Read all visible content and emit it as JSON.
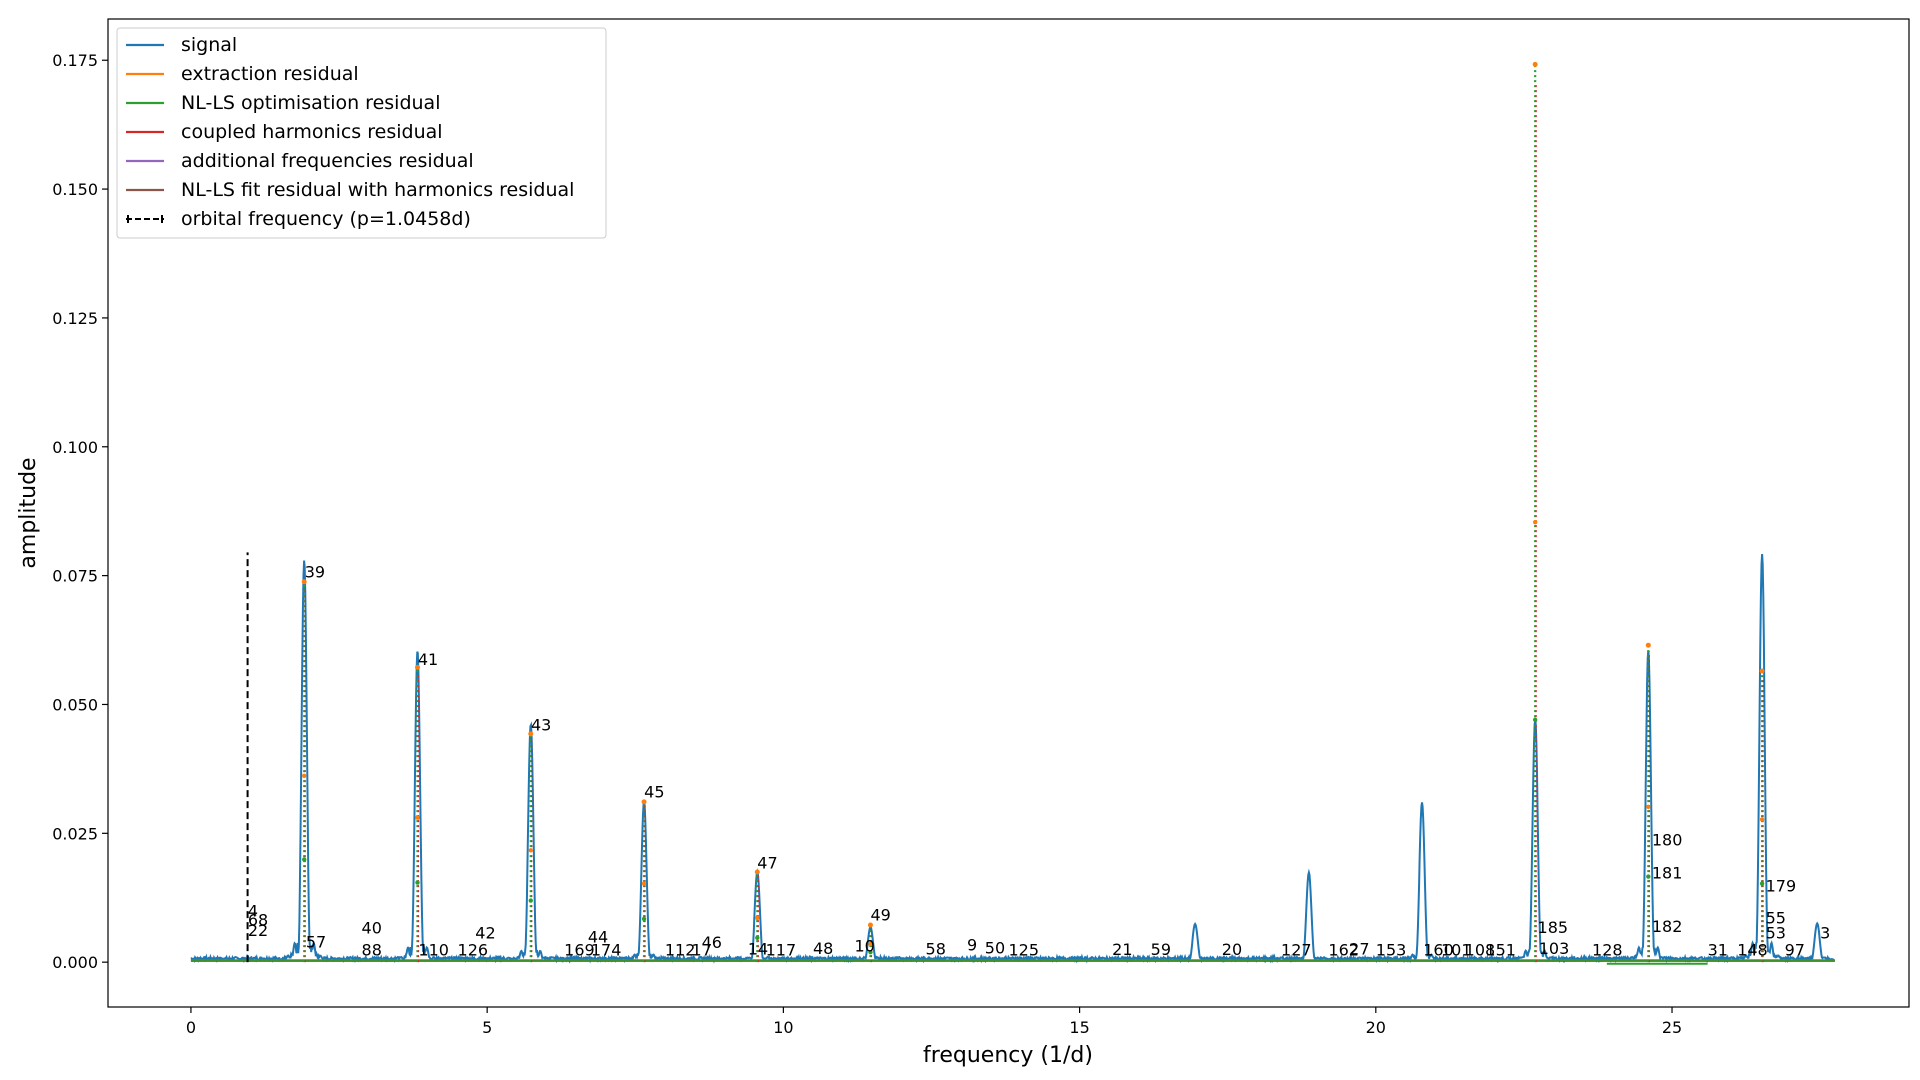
{
  "chart_data": {
    "type": "line",
    "title": "",
    "xlabel": "frequency (1/d)",
    "ylabel": "amplitude",
    "xlim": [
      -1.4,
      29.0
    ],
    "ylim": [
      -0.0087,
      0.183
    ],
    "xticks": [
      0,
      5,
      10,
      15,
      20,
      25
    ],
    "yticks": [
      0.0,
      0.025,
      0.05,
      0.075,
      0.1,
      0.125,
      0.15,
      0.175
    ],
    "ytick_labels": [
      "0.000",
      "0.025",
      "0.050",
      "0.075",
      "0.100",
      "0.125",
      "0.150",
      "0.175"
    ],
    "xtick_labels": [
      "0",
      "5",
      "10",
      "15",
      "20",
      "25"
    ],
    "grid": false,
    "legend_position": "top-left",
    "colors": {
      "signal": "#1f77b4",
      "extraction": "#ff7f0e",
      "nlls": "#2ca02c",
      "coupled": "#d62728",
      "additional": "#9467bd",
      "nlls_harm": "#8c564b",
      "orbital": "#000000"
    },
    "series": [
      {
        "name": "signal",
        "style": "solid",
        "peaks": [
          {
            "x": 1.912,
            "y": 0.078
          },
          {
            "x": 3.824,
            "y": 0.0605
          },
          {
            "x": 5.736,
            "y": 0.0462
          },
          {
            "x": 7.648,
            "y": 0.0313
          },
          {
            "x": 9.56,
            "y": 0.0175
          },
          {
            "x": 11.47,
            "y": 0.0068
          },
          {
            "x": 16.95,
            "y": 0.0074
          },
          {
            "x": 18.87,
            "y": 0.0174
          },
          {
            "x": 20.78,
            "y": 0.031
          },
          {
            "x": 22.69,
            "y": 0.0472
          },
          {
            "x": 24.6,
            "y": 0.0605
          },
          {
            "x": 26.52,
            "y": 0.0792
          },
          {
            "x": 27.45,
            "y": 0.0075
          }
        ]
      },
      {
        "name": "extraction residual",
        "style": "dotted"
      },
      {
        "name": "NL-LS optimisation residual",
        "style": "dotted"
      },
      {
        "name": "coupled harmonics residual",
        "style": "dotted"
      },
      {
        "name": "additional frequencies residual",
        "style": "dotted"
      },
      {
        "name": "NL-LS fit residual with harmonics residual",
        "style": "dotted"
      },
      {
        "name": "orbital frequency (p=1.0458d)",
        "style": "dashed",
        "x": 0.9562,
        "ymax": 0.0795
      }
    ],
    "dotted_spikes": [
      {
        "x": 1.912,
        "y": 0.0738
      },
      {
        "x": 3.824,
        "y": 0.0572
      },
      {
        "x": 5.736,
        "y": 0.0443
      },
      {
        "x": 7.648,
        "y": 0.0311
      },
      {
        "x": 9.56,
        "y": 0.0175
      },
      {
        "x": 11.47,
        "y": 0.0072
      },
      {
        "x": 22.69,
        "y": 0.1742
      },
      {
        "x": 24.6,
        "y": 0.0615
      },
      {
        "x": 26.52,
        "y": 0.0565
      }
    ],
    "annotations": [
      {
        "text": "39",
        "x": 1.92,
        "y": 0.0742
      },
      {
        "text": "41",
        "x": 3.83,
        "y": 0.0573
      },
      {
        "text": "43",
        "x": 5.74,
        "y": 0.0446
      },
      {
        "text": "45",
        "x": 7.65,
        "y": 0.0316
      },
      {
        "text": "47",
        "x": 9.56,
        "y": 0.0178
      },
      {
        "text": "49",
        "x": 11.47,
        "y": 0.0077
      },
      {
        "text": "40",
        "x": 2.88,
        "y": 0.0052
      },
      {
        "text": "42",
        "x": 4.8,
        "y": 0.0042
      },
      {
        "text": "44",
        "x": 6.7,
        "y": 0.0034
      },
      {
        "text": "46",
        "x": 8.62,
        "y": 0.0024
      },
      {
        "text": "48",
        "x": 10.5,
        "y": 0.0012
      },
      {
        "text": "10",
        "x": 11.2,
        "y": 0.0017
      },
      {
        "text": "9",
        "x": 13.1,
        "y": 0.0019
      },
      {
        "text": "50",
        "x": 13.4,
        "y": 0.0013
      },
      {
        "text": "58",
        "x": 12.4,
        "y": 0.0011
      },
      {
        "text": "125",
        "x": 13.8,
        "y": 0.0009
      },
      {
        "text": "21",
        "x": 15.55,
        "y": 0.001
      },
      {
        "text": "59",
        "x": 16.2,
        "y": 0.001
      },
      {
        "text": "20",
        "x": 17.4,
        "y": 0.001
      },
      {
        "text": "127",
        "x": 18.4,
        "y": 0.0009
      },
      {
        "text": "162",
        "x": 19.2,
        "y": 0.0009
      },
      {
        "text": "27",
        "x": 19.55,
        "y": 0.0011
      },
      {
        "text": "153",
        "x": 20.0,
        "y": 0.0009
      },
      {
        "text": "160",
        "x": 20.8,
        "y": 0.0009
      },
      {
        "text": "101",
        "x": 21.1,
        "y": 0.0009
      },
      {
        "text": "108",
        "x": 21.5,
        "y": 0.0009
      },
      {
        "text": "151",
        "x": 21.85,
        "y": 0.0009
      },
      {
        "text": "185",
        "x": 22.73,
        "y": 0.0053
      },
      {
        "text": "103",
        "x": 22.75,
        "y": 0.0012
      },
      {
        "text": "180",
        "x": 24.66,
        "y": 0.0222
      },
      {
        "text": "181",
        "x": 24.66,
        "y": 0.0158
      },
      {
        "text": "182",
        "x": 24.66,
        "y": 0.0055
      },
      {
        "text": "179",
        "x": 26.58,
        "y": 0.0133
      },
      {
        "text": "55",
        "x": 26.58,
        "y": 0.0071
      },
      {
        "text": "53",
        "x": 26.58,
        "y": 0.0042
      },
      {
        "text": "3",
        "x": 27.5,
        "y": 0.0042
      },
      {
        "text": "128",
        "x": 23.65,
        "y": 0.0009
      },
      {
        "text": "31",
        "x": 25.6,
        "y": 0.0009
      },
      {
        "text": "148",
        "x": 26.1,
        "y": 0.0009
      },
      {
        "text": "97",
        "x": 26.9,
        "y": 0.0009
      },
      {
        "text": "4",
        "x": 0.96,
        "y": 0.0085
      },
      {
        "text": "68",
        "x": 0.96,
        "y": 0.0067
      },
      {
        "text": "22",
        "x": 0.96,
        "y": 0.0047
      },
      {
        "text": "57",
        "x": 1.94,
        "y": 0.0025
      },
      {
        "text": "88",
        "x": 2.88,
        "y": 0.0009
      },
      {
        "text": "110",
        "x": 3.84,
        "y": 0.0009
      },
      {
        "text": "126",
        "x": 4.5,
        "y": 0.0009
      },
      {
        "text": "169",
        "x": 6.3,
        "y": 0.0009
      },
      {
        "text": "174",
        "x": 6.75,
        "y": 0.0009
      },
      {
        "text": "14",
        "x": 9.4,
        "y": 0.0011
      },
      {
        "text": "117",
        "x": 9.7,
        "y": 0.0009
      },
      {
        "text": "112",
        "x": 8.0,
        "y": 0.0009
      },
      {
        "text": "17",
        "x": 8.45,
        "y": 0.0009
      }
    ]
  },
  "legend": {
    "items": [
      {
        "label": "signal",
        "color": "#1f77b4",
        "marker": "line"
      },
      {
        "label": "extraction residual",
        "color": "#ff7f0e",
        "marker": "line"
      },
      {
        "label": "NL-LS optimisation residual",
        "color": "#2ca02c",
        "marker": "line"
      },
      {
        "label": "coupled harmonics residual",
        "color": "#d62728",
        "marker": "line"
      },
      {
        "label": "additional frequencies residual",
        "color": "#9467bd",
        "marker": "line"
      },
      {
        "label": "NL-LS fit residual with harmonics residual",
        "color": "#8c564b",
        "marker": "line"
      },
      {
        "label": "orbital frequency (p=1.0458d)",
        "color": "#000000",
        "marker": "errorbar"
      }
    ]
  }
}
